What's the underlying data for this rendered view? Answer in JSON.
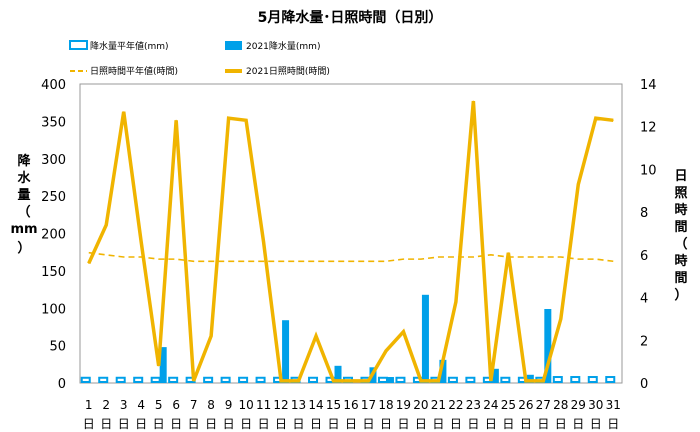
{
  "chart_data": {
    "type": "bar+line",
    "title": "5月降水量･日照時間（日別）",
    "x": [
      "1",
      "2",
      "3",
      "4",
      "5",
      "6",
      "7",
      "8",
      "9",
      "10",
      "11",
      "12",
      "13",
      "14",
      "15",
      "16",
      "17",
      "18",
      "19",
      "20",
      "21",
      "22",
      "23",
      "24",
      "25",
      "26",
      "27",
      "28",
      "29",
      "30",
      "31"
    ],
    "day_suffix": "日",
    "y_left": {
      "label": [
        "降",
        "水",
        "量",
        "（",
        "mm",
        "）"
      ],
      "ylim": [
        0,
        400
      ],
      "ticks": [
        "0",
        "50",
        "100",
        "150",
        "200",
        "250",
        "300",
        "350",
        "400"
      ]
    },
    "y_right": {
      "label": [
        "日",
        "照",
        "時",
        "間",
        "（",
        "時",
        "間",
        "）"
      ],
      "ylim": [
        0,
        14
      ],
      "ticks": [
        "0",
        "2",
        "4",
        "6",
        "8",
        "10",
        "12",
        "14"
      ]
    },
    "series": [
      {
        "name": "降水量平年値(mm)",
        "kind": "bar-outline",
        "axis": "left",
        "color": "#00a0e9",
        "values": [
          7,
          7,
          7,
          7,
          7,
          7,
          7,
          7,
          7,
          7,
          7,
          7,
          7,
          7,
          7,
          7,
          7,
          7,
          7,
          7,
          7,
          7,
          7,
          7,
          7,
          7,
          7,
          8,
          8,
          8,
          8
        ]
      },
      {
        "name": "2021降水量(mm)",
        "kind": "bar",
        "axis": "left",
        "color": "#00a0e9",
        "values": [
          0,
          0,
          0,
          0,
          48,
          0,
          0,
          0,
          0,
          0,
          0,
          84,
          0,
          0,
          23,
          0,
          21,
          8,
          0,
          118,
          31,
          0,
          0,
          19,
          0,
          11,
          99,
          0,
          0,
          0,
          0
        ]
      },
      {
        "name": "日照時間平年値(時間)",
        "kind": "line-dashed",
        "axis": "right",
        "color": "#f0b400",
        "values": [
          6.1,
          6.0,
          5.9,
          5.9,
          5.8,
          5.8,
          5.7,
          5.7,
          5.7,
          5.7,
          5.7,
          5.7,
          5.7,
          5.7,
          5.7,
          5.7,
          5.7,
          5.7,
          5.8,
          5.8,
          5.9,
          5.9,
          5.9,
          6.0,
          5.9,
          5.9,
          5.9,
          5.9,
          5.8,
          5.8,
          5.7
        ]
      },
      {
        "name": "2021日照時間(時間)",
        "kind": "line",
        "axis": "right",
        "color": "#f0b400",
        "values": [
          5.6,
          7.4,
          12.7,
          6.6,
          0.8,
          12.3,
          0.1,
          2.2,
          12.4,
          12.3,
          6.6,
          0.1,
          0.1,
          2.2,
          0.1,
          0.1,
          0.1,
          1.5,
          2.4,
          0.1,
          0.1,
          3.8,
          13.2,
          0.1,
          6.1,
          0.1,
          0.1,
          3.0,
          9.3,
          12.4,
          12.3
        ]
      }
    ]
  },
  "colors": {
    "bar": "#00a0e9",
    "sun": "#f0b400",
    "axis": "#999999"
  }
}
